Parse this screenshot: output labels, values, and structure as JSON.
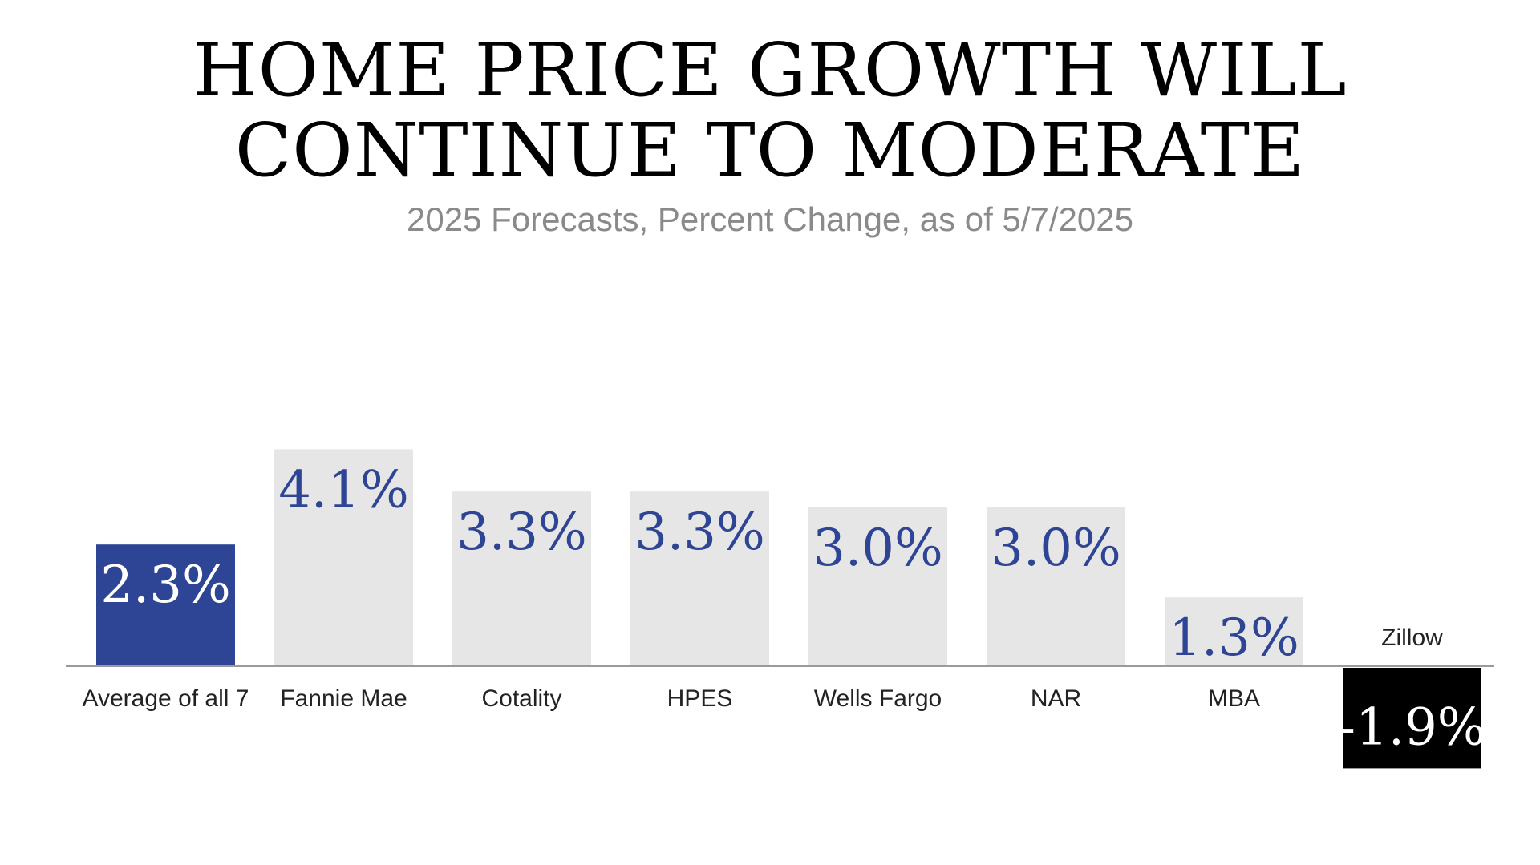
{
  "chart_data": {
    "type": "bar",
    "title_lines": [
      "HOME PRICE GROWTH WILL",
      "CONTINUE TO MODERATE"
    ],
    "subtitle": "2025 Forecasts, Percent Change, as of 5/7/2025",
    "categories": [
      "Average of all 7",
      "Fannie Mae",
      "Cotality",
      "HPES",
      "Wells Fargo",
      "NAR",
      "MBA",
      "Zillow"
    ],
    "values": [
      2.3,
      4.1,
      3.3,
      3.3,
      3.0,
      3.0,
      1.3,
      -1.9
    ],
    "value_labels": [
      "2.3%",
      "4.1%",
      "3.3%",
      "3.3%",
      "3.0%",
      "3.0%",
      "1.3%",
      "-1.9%"
    ],
    "unit": "%",
    "ylim": [
      -1.9,
      4.1
    ],
    "grid": false,
    "colors": {
      "highlight_bar": "#2e4494",
      "default_bar": "#e6e6e6",
      "negative_bar": "#000000",
      "value_text_on_light": "#2e4494",
      "value_text_on_dark": "#ffffff",
      "axis_line": "#9a9a9a"
    }
  }
}
